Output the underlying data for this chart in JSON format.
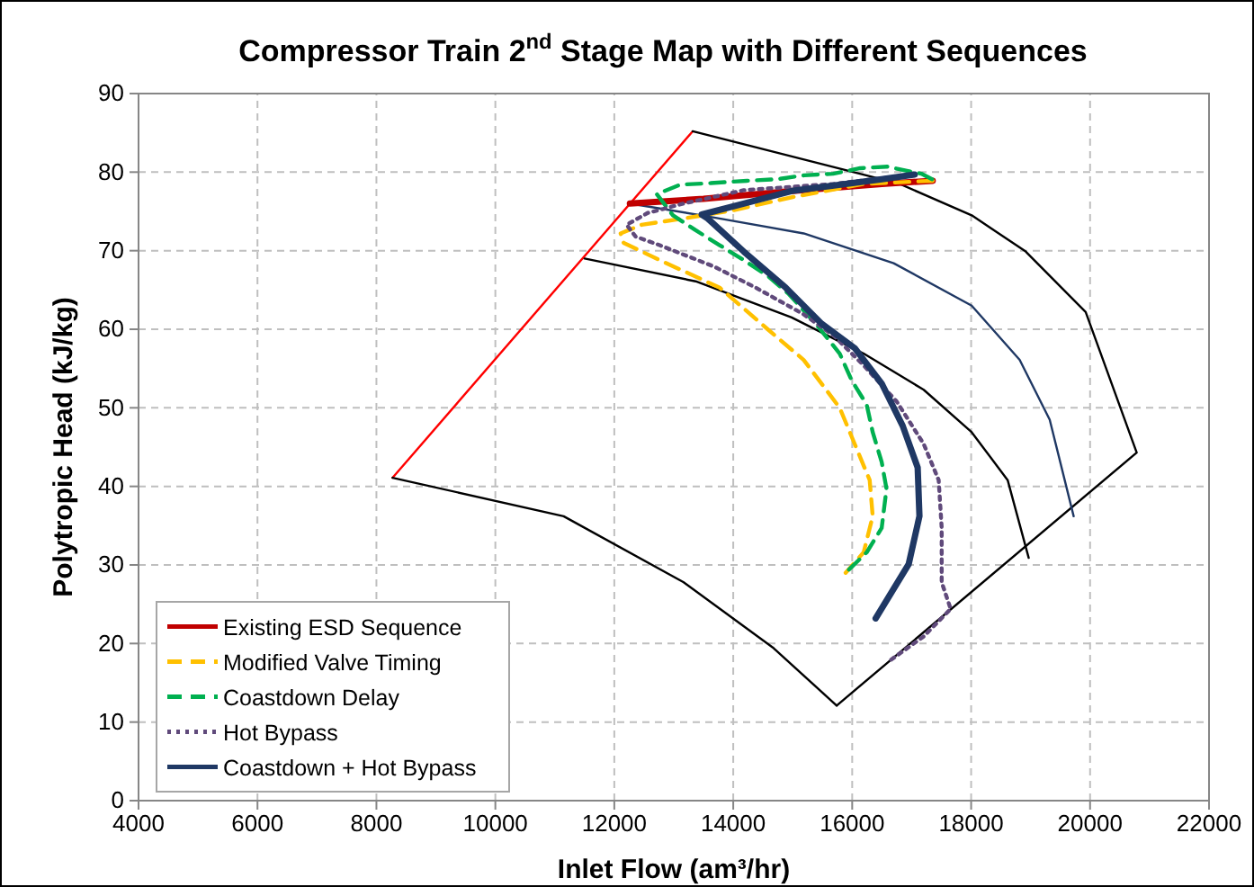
{
  "chart_data": {
    "type": "line",
    "title": "Compressor Train 2$^{nd}$ Stage Map with Different Sequences",
    "xlabel": "Inlet Flow (am³/hr)",
    "ylabel": "Polytropic Head (kJ/kg)",
    "xlim": [
      4000,
      22000
    ],
    "xticks": [
      4000,
      6000,
      8000,
      10000,
      12000,
      14000,
      16000,
      18000,
      20000,
      22000
    ],
    "ylim": [
      0,
      90
    ],
    "yticks": [
      0,
      10,
      20,
      30,
      40,
      50,
      60,
      70,
      80,
      90
    ],
    "grid": true,
    "legend": "bottom left",
    "series": [
      {
        "name": "Existing ESD Sequence",
        "color": "#c00000",
        "line_style": "solid",
        "x": [
          12262,
          13500,
          15000,
          16500,
          17354
        ],
        "values": [
          76.0,
          76.6,
          77.6,
          78.5,
          78.9
        ]
      },
      {
        "name": "Modified Valve Timing",
        "color": "#ffc000",
        "line_style": "dashed",
        "x": [
          17354,
          16193,
          14982,
          13973,
          13166,
          12459,
          12106,
          12157,
          12762,
          13771,
          14579,
          15184,
          15790,
          16042,
          16294,
          16345,
          16193,
          15890
        ],
        "values": [
          78.9,
          78.5,
          76.8,
          75.1,
          74.1,
          73.3,
          72.2,
          71.0,
          68.8,
          65.3,
          60.0,
          56.1,
          50.0,
          45.4,
          40.8,
          36.2,
          31.6,
          29.0
        ]
      },
      {
        "name": "Coastdown Delay",
        "color": "#00b050",
        "line_style": "dashed",
        "x": [
          17343,
          17162,
          16587,
          16133,
          15679,
          15195,
          14741,
          14227,
          13622,
          13107,
          12714,
          12986,
          13368,
          13771,
          14175,
          14579,
          14932,
          15386,
          15790,
          15991,
          16244,
          16345,
          16496,
          16577,
          16496,
          16244,
          15890
        ],
        "values": [
          79.1,
          79.8,
          80.7,
          80.5,
          79.8,
          79.6,
          79.1,
          78.9,
          78.6,
          78.4,
          77.2,
          74.5,
          72.6,
          70.7,
          68.8,
          66.8,
          64.5,
          60.7,
          56.9,
          53.5,
          50.4,
          46.9,
          43.1,
          39.7,
          34.7,
          31.6,
          29.0
        ]
      },
      {
        "name": "Hot Bypass",
        "color": "#604a7b",
        "line_style": "dotted",
        "x": [
          17050,
          15689,
          14175,
          13166,
          12560,
          12207,
          12358,
          12762,
          13670,
          14377,
          15184,
          15689,
          16193,
          16748,
          17202,
          17454,
          17505,
          17505,
          17656,
          17202,
          16647
        ],
        "values": [
          79.7,
          78.5,
          77.7,
          76.0,
          74.8,
          73.3,
          71.8,
          70.7,
          68.0,
          65.3,
          61.9,
          59.2,
          55.4,
          50.8,
          45.4,
          40.8,
          34.7,
          27.8,
          24.4,
          20.9,
          17.9
        ]
      },
      {
        "name": "Coastdown + Hot Bypass",
        "color": "#1f3864",
        "line_style": "solid",
        "x": [
          17050,
          16496,
          15689,
          14982,
          14175,
          13469,
          13570,
          14175,
          14881,
          15487,
          16042,
          16496,
          16849,
          17101,
          17131,
          16950,
          16395
        ],
        "values": [
          79.7,
          79.1,
          78.3,
          77.6,
          76.0,
          74.6,
          74.1,
          69.9,
          65.3,
          60.7,
          57.6,
          53.1,
          47.7,
          42.4,
          36.2,
          30.1,
          23.2
        ]
      },
      {
        "color": "#ff0000",
        "line_style": "solid",
        "x": [
          8272,
          13318
        ],
        "values": [
          41.1,
          85.2
        ]
      },
      {
        "color": "#000000",
        "line_style": "solid",
        "x": [
          13318,
          16799,
          18009,
          18917,
          19926,
          20784,
          15739
        ],
        "values": [
          85.2,
          78.5,
          74.5,
          69.9,
          62.2,
          44.3,
          12.1
        ]
      },
      {
        "color": "#000000",
        "line_style": "solid",
        "x": [
          8272,
          11148,
          13166,
          14680,
          15739
        ],
        "values": [
          41.1,
          36.2,
          27.8,
          19.4,
          12.1
        ]
      },
      {
        "color": "#000000",
        "line_style": "solid",
        "x": [
          11501,
          13368,
          14982,
          16193,
          17202,
          18009,
          18614,
          18968
        ],
        "values": [
          69.0,
          66.1,
          61.5,
          56.9,
          52.3,
          46.9,
          40.8,
          30.9
        ]
      },
      {
        "color": "#1f3864",
        "line_style": "solid",
        "x": [
          12262,
          13469,
          15184,
          16698,
          18009,
          18816,
          19321,
          19724
        ],
        "values": [
          76.0,
          74.5,
          72.2,
          68.4,
          63.0,
          56.1,
          48.5,
          36.2
        ]
      }
    ]
  }
}
